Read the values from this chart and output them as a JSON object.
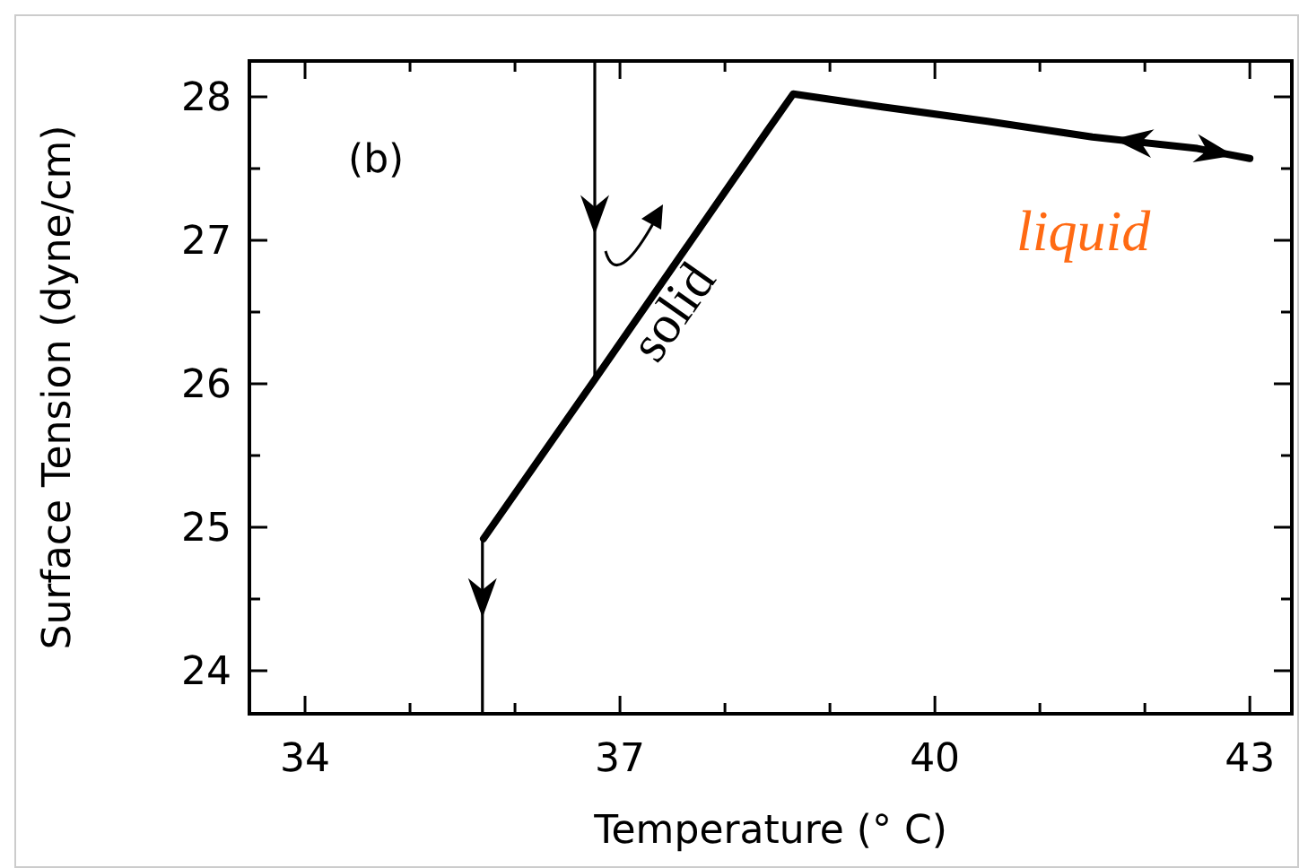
{
  "chart_data": {
    "type": "line",
    "xlabel": "Temperature (° C)",
    "ylabel": "Surface Tension (dyne/cm)",
    "xlim": [
      33.47,
      43.4
    ],
    "ylim": [
      23.7,
      28.25
    ],
    "xticks": [
      34,
      {
        "value": 35,
        "label": null
      },
      {
        "value": 36,
        "label": null
      },
      37,
      {
        "value": 38,
        "label": null
      },
      {
        "value": 39,
        "label": null
      },
      40,
      {
        "value": 41,
        "label": null
      },
      {
        "value": 42,
        "label": null
      },
      43
    ],
    "yticks": [
      24,
      {
        "value": 24.5,
        "label": null
      },
      25,
      {
        "value": 25.5,
        "label": null
      },
      26,
      {
        "value": 26.5,
        "label": null
      },
      27,
      {
        "value": 27.5,
        "label": null
      },
      28
    ],
    "grid": false,
    "line_style": "solid",
    "series": [
      {
        "color": "#000000",
        "x": [
          35.7,
          36.76,
          37.5,
          38.4,
          38.65,
          39.5,
          40.5,
          41.5,
          42.5,
          43
        ],
        "values": [
          24.92,
          26.03,
          26.81,
          27.76,
          28.02,
          27.93,
          27.83,
          27.72,
          27.64,
          27.57
        ]
      },
      {
        "color": "#000000",
        "x": [
          35.69,
          35.69
        ],
        "values": [
          24.92,
          23.7
        ]
      },
      {
        "color": "#000000",
        "x": [
          36.76,
          36.76
        ],
        "values": [
          28.25,
          26.05
        ]
      }
    ],
    "annotations": [
      "(b)",
      "solid",
      "liquid"
    ]
  }
}
